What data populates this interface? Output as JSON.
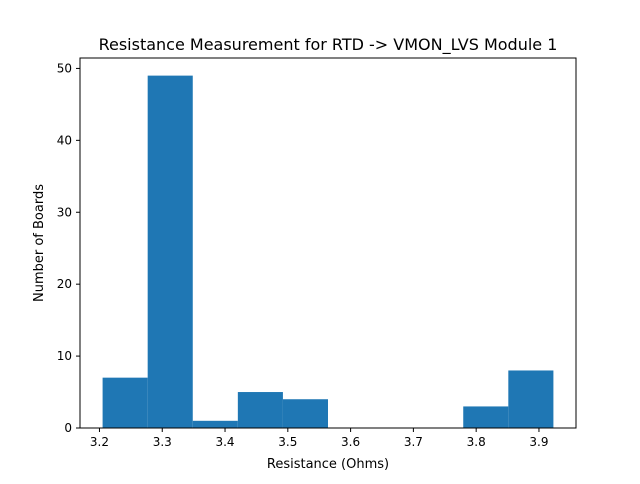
{
  "chart_data": {
    "type": "bar",
    "title": "Resistance Measurement for RTD -> VMON_LVS Module 1",
    "xlabel": "Resistance (Ohms)",
    "ylabel": "Number of Boards",
    "bins": [
      {
        "start": 3.205,
        "end": 3.2768,
        "count": 7
      },
      {
        "start": 3.2768,
        "end": 3.3486,
        "count": 49
      },
      {
        "start": 3.3486,
        "end": 3.4204,
        "count": 1
      },
      {
        "start": 3.4204,
        "end": 3.4922,
        "count": 5
      },
      {
        "start": 3.4922,
        "end": 3.564,
        "count": 4
      },
      {
        "start": 3.564,
        "end": 3.6358,
        "count": 0
      },
      {
        "start": 3.6358,
        "end": 3.7076,
        "count": 0
      },
      {
        "start": 3.7076,
        "end": 3.7794,
        "count": 0
      },
      {
        "start": 3.7794,
        "end": 3.8512,
        "count": 3
      },
      {
        "start": 3.8512,
        "end": 3.923,
        "count": 8
      }
    ],
    "xticks": [
      3.2,
      3.3,
      3.4,
      3.5,
      3.6,
      3.7,
      3.8,
      3.9
    ],
    "xtick_labels": [
      "3.2",
      "3.3",
      "3.4",
      "3.5",
      "3.6",
      "3.7",
      "3.8",
      "3.9"
    ],
    "yticks": [
      0,
      10,
      20,
      30,
      40,
      50
    ],
    "ytick_labels": [
      "0",
      "10",
      "20",
      "30",
      "40",
      "50"
    ],
    "xlim": [
      3.169,
      3.959
    ],
    "ylim": [
      0,
      51.45
    ],
    "grid": false,
    "bar_color": "#1f77b4"
  }
}
